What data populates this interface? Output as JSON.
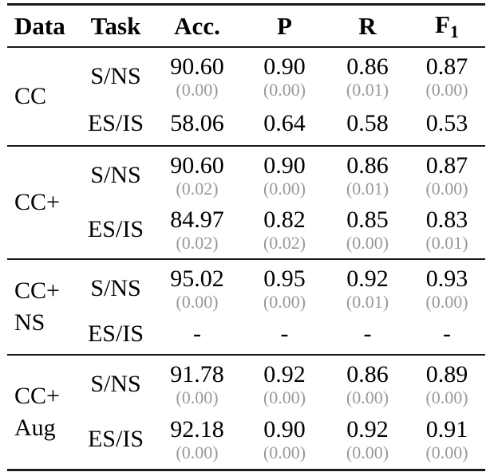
{
  "table": {
    "header": {
      "data": "Data",
      "task": "Task",
      "acc": "Acc.",
      "p": "P",
      "r": "R",
      "f1_base": "F",
      "f1_sub": "1"
    },
    "colors": {
      "text": "#000000",
      "std_text": "#999999",
      "rule": "#1a1a1a"
    },
    "sections": [
      {
        "label_lines": [
          "CC"
        ],
        "rows": [
          {
            "task": "S/NS",
            "cells": [
              {
                "v": "90.60",
                "std": "(0.00)"
              },
              {
                "v": "0.90",
                "std": "(0.00)"
              },
              {
                "v": "0.86",
                "std": "(0.01)"
              },
              {
                "v": "0.87",
                "std": "(0.00)"
              }
            ]
          },
          {
            "task": "ES/IS",
            "cells": [
              {
                "v": "58.06"
              },
              {
                "v": "0.64"
              },
              {
                "v": "0.58"
              },
              {
                "v": "0.53"
              }
            ]
          }
        ]
      },
      {
        "label_lines": [
          "CC+"
        ],
        "rows": [
          {
            "task": "S/NS",
            "cells": [
              {
                "v": "90.60",
                "std": "(0.02)"
              },
              {
                "v": "0.90",
                "std": "(0.00)"
              },
              {
                "v": "0.86",
                "std": "(0.01)"
              },
              {
                "v": "0.87",
                "std": "(0.00)"
              }
            ]
          },
          {
            "task": "ES/IS",
            "cells": [
              {
                "v": "84.97",
                "std": "(0.02)"
              },
              {
                "v": "0.82",
                "std": "(0.02)"
              },
              {
                "v": "0.85",
                "std": "(0.00)"
              },
              {
                "v": "0.83",
                "std": "(0.01)"
              }
            ]
          }
        ]
      },
      {
        "label_lines": [
          "CC+",
          "NS"
        ],
        "rows": [
          {
            "task": "S/NS",
            "cells": [
              {
                "v": "95.02",
                "std": "(0.00)"
              },
              {
                "v": "0.95",
                "std": "(0.00)"
              },
              {
                "v": "0.92",
                "std": "(0.01)"
              },
              {
                "v": "0.93",
                "std": "(0.00)"
              }
            ]
          },
          {
            "task": "ES/IS",
            "cells": [
              {
                "v": "-"
              },
              {
                "v": "-"
              },
              {
                "v": "-"
              },
              {
                "v": "-"
              }
            ]
          }
        ]
      },
      {
        "label_lines": [
          "CC+",
          "Aug"
        ],
        "rows": [
          {
            "task": "S/NS",
            "cells": [
              {
                "v": "91.78",
                "std": "(0.00)"
              },
              {
                "v": "0.92",
                "std": "(0.00)"
              },
              {
                "v": "0.86",
                "std": "(0.00)"
              },
              {
                "v": "0.89",
                "std": "(0.00)"
              }
            ]
          },
          {
            "task": "ES/IS",
            "cells": [
              {
                "v": "92.18",
                "std": "(0.00)"
              },
              {
                "v": "0.90",
                "std": "(0.00)"
              },
              {
                "v": "0.92",
                "std": "(0.00)"
              },
              {
                "v": "0.91",
                "std": "(0.00)"
              }
            ]
          }
        ]
      }
    ]
  }
}
